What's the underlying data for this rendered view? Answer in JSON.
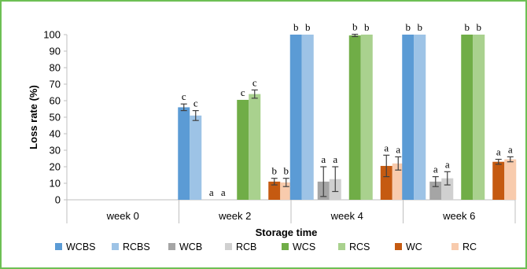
{
  "chart_data": {
    "type": "bar",
    "xlabel": "Storage time",
    "ylabel": "Loss rate (%)",
    "ylim": [
      0,
      100
    ],
    "yticks": [
      0,
      10,
      20,
      30,
      40,
      50,
      60,
      70,
      80,
      90,
      100
    ],
    "grid": false,
    "legend_position": "bottom",
    "categories": [
      "week 0",
      "week 2",
      "week 4",
      "week 6"
    ],
    "series": [
      {
        "name": "WCBS",
        "color": "#5b9bd5",
        "values": [
          0,
          56,
          100,
          100
        ],
        "errors": [
          0,
          2,
          0,
          0
        ],
        "labels": [
          "",
          "c",
          "b",
          "b"
        ]
      },
      {
        "name": "RCBS",
        "color": "#9dc3e6",
        "values": [
          0,
          51,
          100,
          100
        ],
        "errors": [
          0,
          3,
          0,
          0
        ],
        "labels": [
          "",
          "c",
          "b",
          "b"
        ]
      },
      {
        "name": "WCB",
        "color": "#a5a5a5",
        "values": [
          0,
          0,
          11,
          11
        ],
        "errors": [
          0,
          0,
          9,
          3
        ],
        "labels": [
          "",
          "a",
          "a",
          "a"
        ]
      },
      {
        "name": "RCB",
        "color": "#d0d0d0",
        "values": [
          0,
          0,
          12.5,
          13
        ],
        "errors": [
          0,
          0,
          7.5,
          4
        ],
        "labels": [
          "",
          "a",
          "a",
          "a"
        ]
      },
      {
        "name": "WCS",
        "color": "#70ad47",
        "values": [
          0,
          60.5,
          99.5,
          100
        ],
        "errors": [
          0,
          0,
          0.7,
          0
        ],
        "labels": [
          "",
          "c",
          "b",
          "b"
        ]
      },
      {
        "name": "RCS",
        "color": "#a9d18e",
        "values": [
          0,
          64,
          100,
          100
        ],
        "errors": [
          0,
          2.5,
          0,
          0
        ],
        "labels": [
          "",
          "c",
          "b",
          "b"
        ]
      },
      {
        "name": "WC",
        "color": "#c55a11",
        "values": [
          0,
          11,
          20.5,
          23
        ],
        "errors": [
          0,
          2,
          6.5,
          1.5
        ],
        "labels": [
          "",
          "b",
          "a",
          "a"
        ]
      },
      {
        "name": "RC",
        "color": "#f8cbad",
        "values": [
          0,
          10.5,
          22,
          24.5
        ],
        "errors": [
          0,
          2.5,
          4,
          1.5
        ],
        "labels": [
          "",
          "b",
          "a",
          "a"
        ]
      }
    ]
  }
}
